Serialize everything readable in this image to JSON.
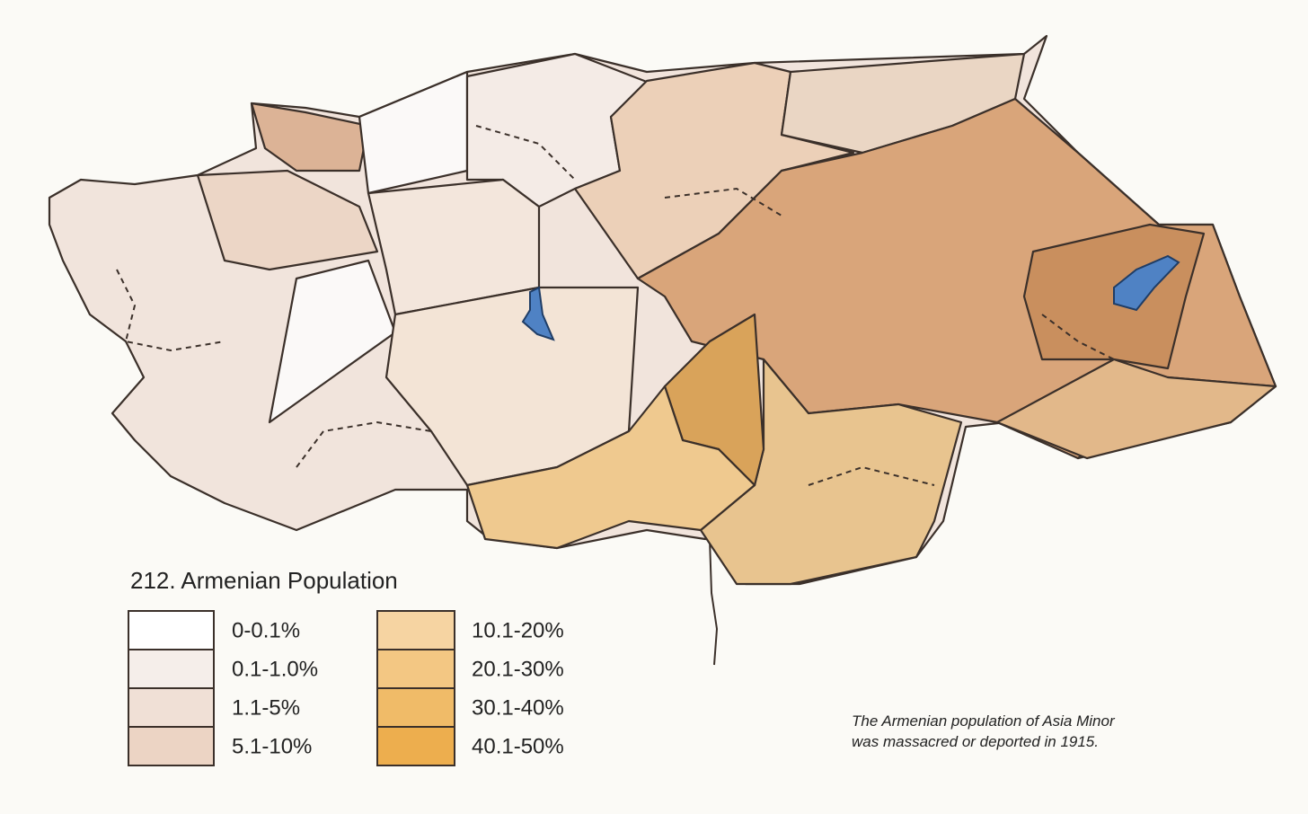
{
  "title": "212. Armenian Population",
  "legend": {
    "items": [
      {
        "label": "0-0.1%",
        "color": "#ffffff"
      },
      {
        "label": "0.1-1.0%",
        "color": "#f5eeea"
      },
      {
        "label": "1.1-5%",
        "color": "#f0e0d6"
      },
      {
        "label": "5.1-10%",
        "color": "#ecd4c4"
      },
      {
        "label": "10.1-20%",
        "color": "#f6d4a2"
      },
      {
        "label": "20.1-30%",
        "color": "#f3c783"
      },
      {
        "label": "30.1-40%",
        "color": "#f0bb68"
      },
      {
        "label": "40.1-50%",
        "color": "#edae4e"
      }
    ]
  },
  "caption": {
    "lines": [
      "The Armenian population of Asia Minor",
      "was massacred or deported in 1915."
    ]
  }
}
